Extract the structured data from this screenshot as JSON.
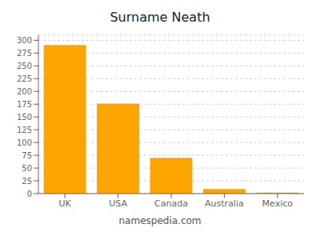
{
  "chart_data": {
    "type": "bar",
    "title": "Surname Neath",
    "categories": [
      "UK",
      "USA",
      "Canada",
      "Australia",
      "Mexico"
    ],
    "values": [
      291,
      176,
      70,
      9,
      2
    ],
    "color": "#FFA500",
    "ylim": [
      0,
      310
    ],
    "yticks": [
      0,
      25,
      50,
      75,
      100,
      125,
      150,
      175,
      200,
      225,
      250,
      275,
      300
    ],
    "grid": true,
    "annotations": [
      "namespedia.com"
    ]
  }
}
